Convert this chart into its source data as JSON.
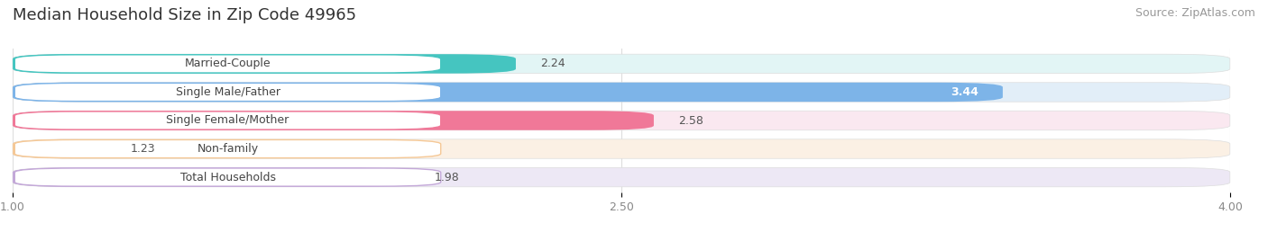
{
  "title": "Median Household Size in Zip Code 49965",
  "source": "Source: ZipAtlas.com",
  "categories": [
    "Married-Couple",
    "Single Male/Father",
    "Single Female/Mother",
    "Non-family",
    "Total Households"
  ],
  "values": [
    2.24,
    3.44,
    2.58,
    1.23,
    1.98
  ],
  "bar_colors": [
    "#45C5C0",
    "#7DB4E8",
    "#F07898",
    "#F5C896",
    "#C3A8D8"
  ],
  "bar_bg_colors": [
    "#E2F5F5",
    "#E2EEF8",
    "#FAE8F0",
    "#FBF0E4",
    "#EDE8F5"
  ],
  "label_bg_color": "#FFFFFF",
  "xlim": [
    1.0,
    4.0
  ],
  "xticks": [
    1.0,
    2.5,
    4.0
  ],
  "xticklabels": [
    "1.00",
    "2.50",
    "4.00"
  ],
  "value_label_inside": [
    false,
    true,
    false,
    false,
    false
  ],
  "bg_color": "#FFFFFF",
  "panel_bg": "#F7F7F7",
  "title_fontsize": 13,
  "source_fontsize": 9,
  "label_fontsize": 9,
  "value_fontsize": 9,
  "tick_fontsize": 9
}
